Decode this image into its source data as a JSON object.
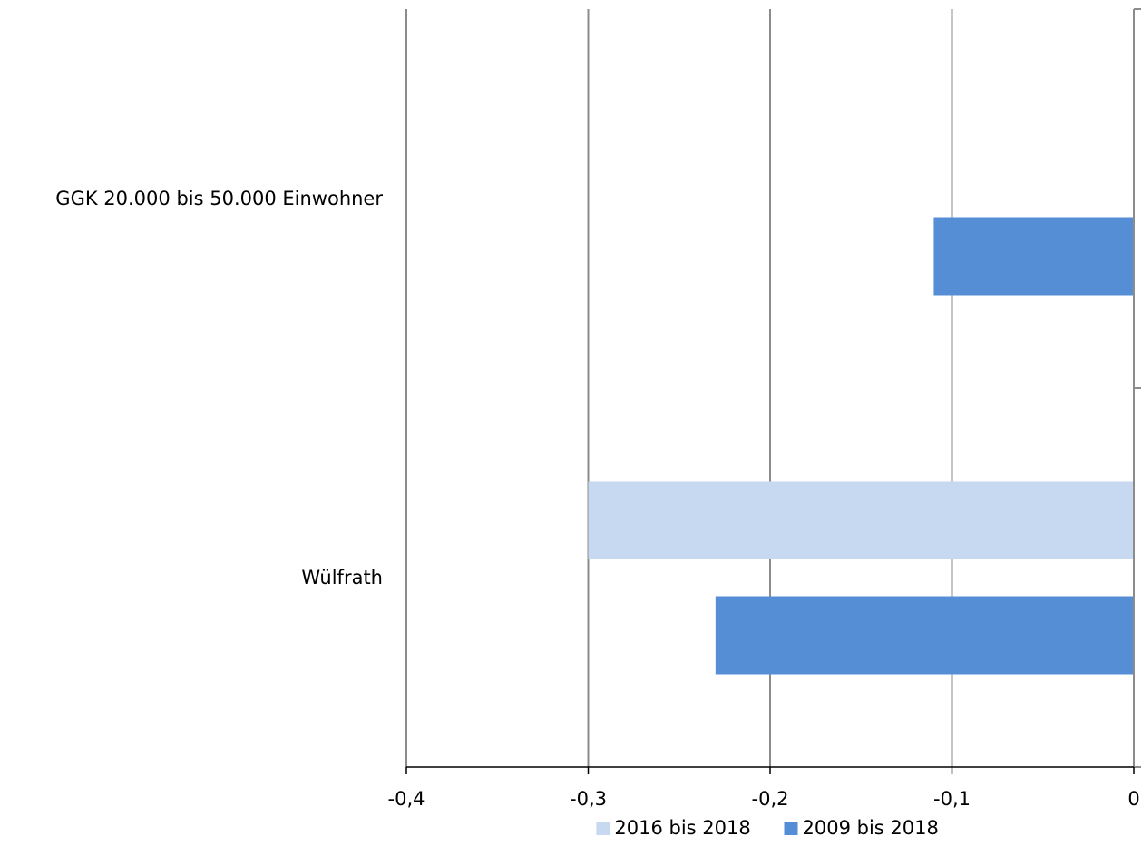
{
  "chart_data": {
    "type": "bar",
    "orientation": "horizontal",
    "categories": [
      "GGK 20.000 bis 50.000 Einwohner",
      "Wülfrath"
    ],
    "series": [
      {
        "name": "2016 bis 2018",
        "values": [
          null,
          -0.3
        ],
        "color": "#c6d9f1"
      },
      {
        "name": "2009 bis 2018",
        "values": [
          -0.11,
          -0.23
        ],
        "color": "#558ed5"
      }
    ],
    "xlim": [
      -0.4,
      0
    ],
    "xticks": [
      -0.4,
      -0.3,
      -0.2,
      -0.1,
      0
    ],
    "xtick_labels": [
      "-0,4",
      "-0,3",
      "-0,2",
      "-0,1",
      "0"
    ],
    "grid": "vertical",
    "legend_position": "bottom",
    "title": "",
    "xlabel": "",
    "ylabel": ""
  }
}
